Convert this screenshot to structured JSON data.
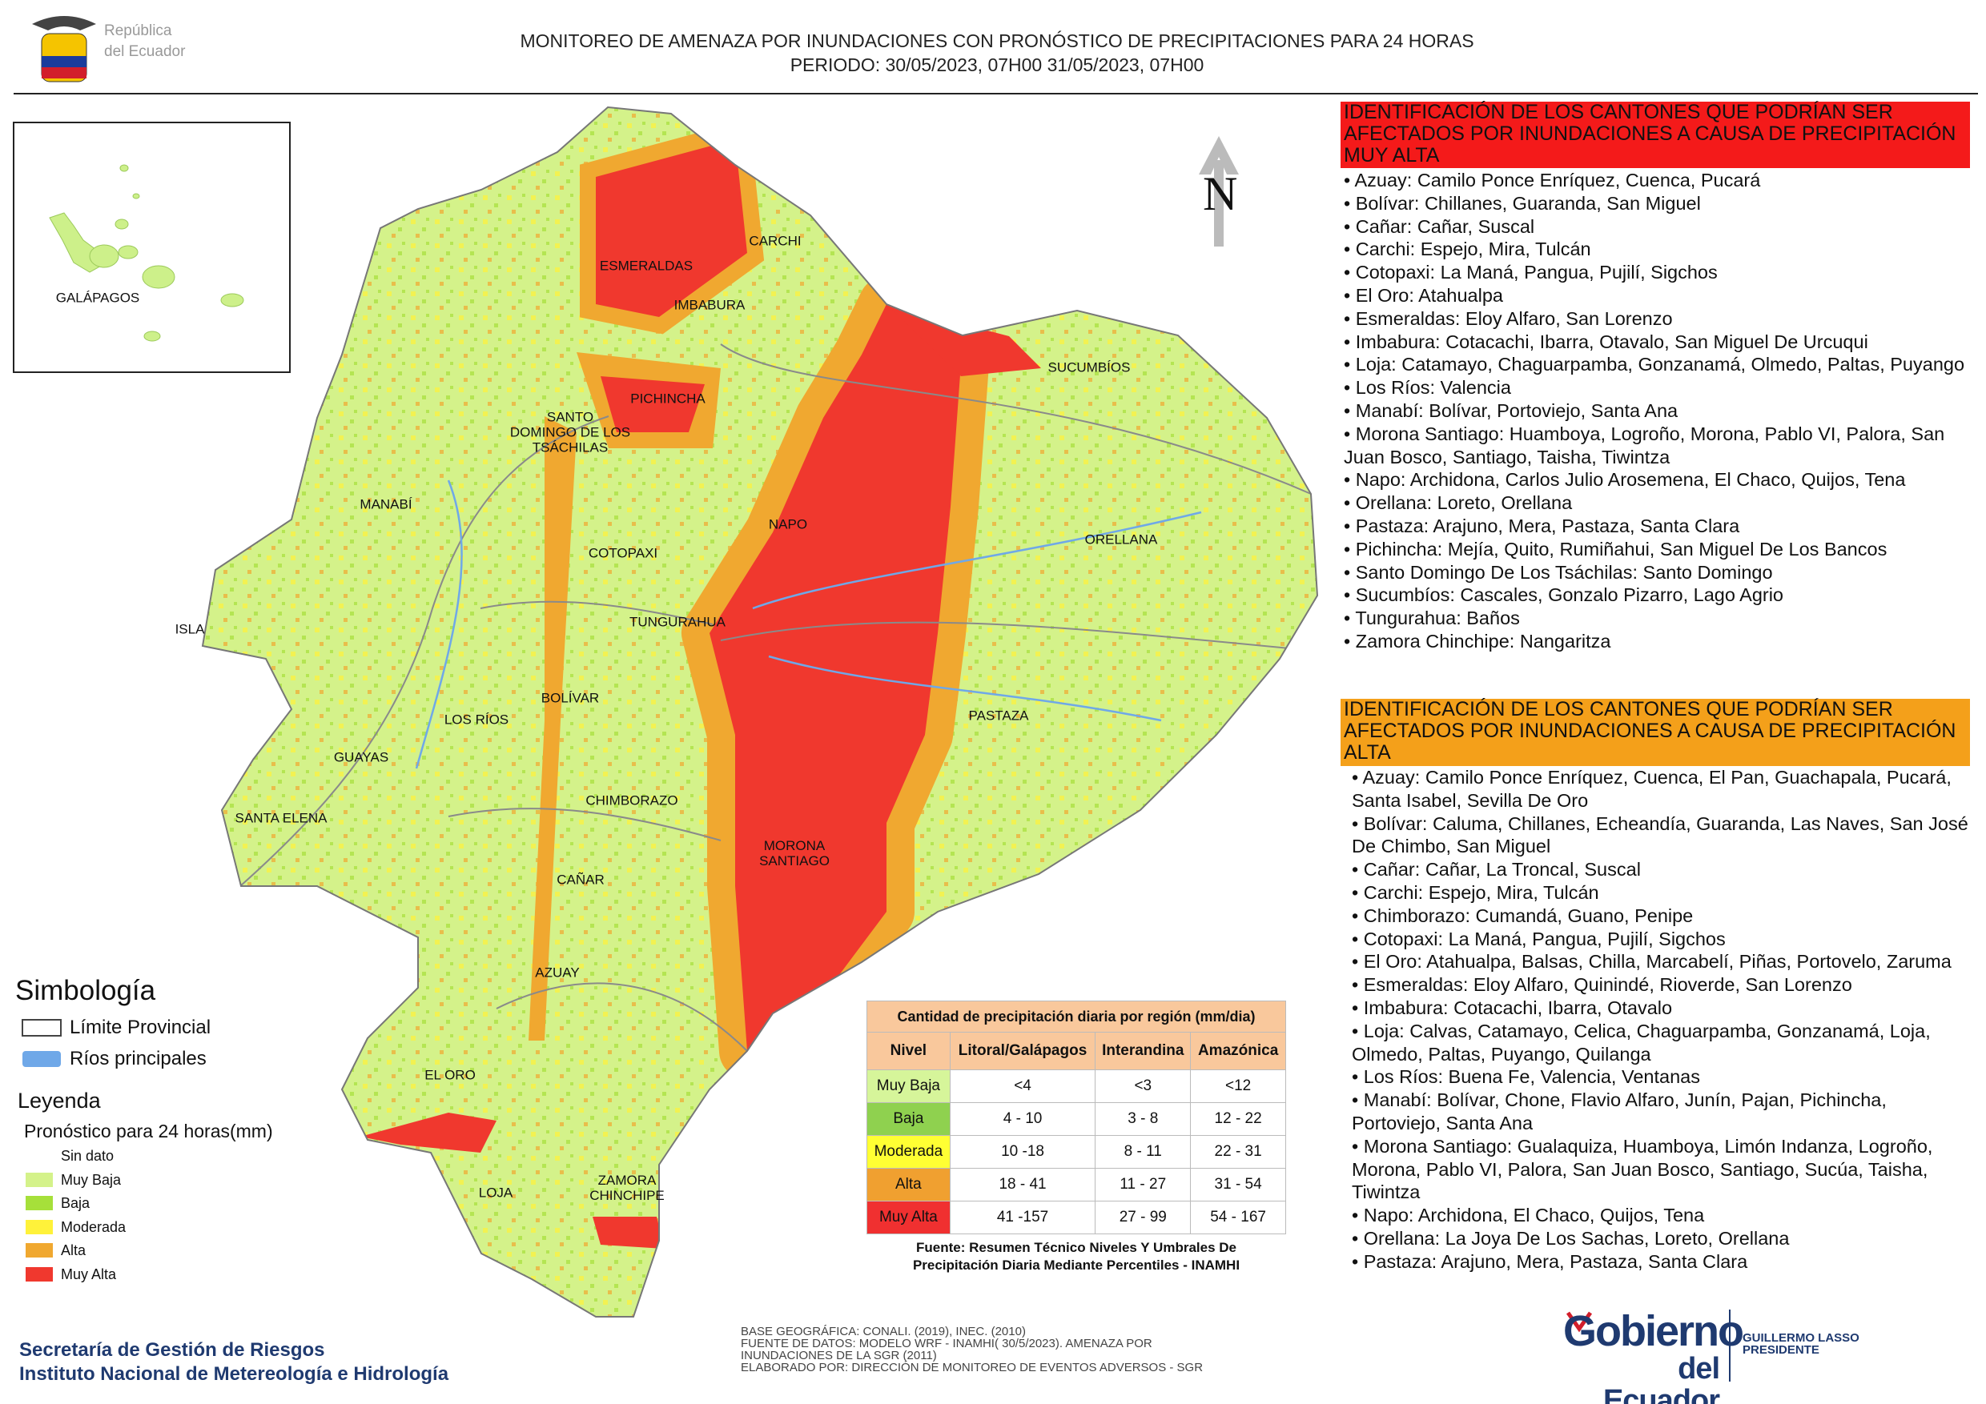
{
  "header": {
    "logo_text": [
      "República",
      "del Ecuador"
    ],
    "title": [
      "MONITOREO DE AMENAZA POR INUNDACIONES  CON PRONÓSTICO DE  PRECIPITACIONES PARA 24 HORAS",
      "PERIODO: 30/05/2023, 07H00 31/05/2023, 07H00"
    ]
  },
  "map": {
    "north": "N",
    "inset_label": "GALÁPAGOS",
    "provinces": [
      "CARCHI",
      "ESMERALDAS",
      "IMBABURA",
      "SUCUMBÍOS",
      "PICHINCHA",
      "SANTO\nDOMINGO DE LOS\nTSÁCHILAS",
      "MANABÍ",
      "NAPO",
      "ORELLANA",
      "COTOPAXI",
      "ISLA",
      "TUNGURAHUA",
      "BOLÍVAR",
      "LOS RÍOS",
      "PASTAZA",
      "GUAYAS",
      "CHIMBORAZO",
      "SANTA ELENA",
      "MORONA\nSANTIAGO",
      "CAÑAR",
      "AZUAY",
      "EL ORO",
      "LOJA",
      "ZAMORA\nCHINCHIPE"
    ]
  },
  "legend": {
    "symbology_title": "Simbología",
    "symbols": [
      "Límite Provincial",
      "Ríos principales"
    ],
    "title": "Leyenda",
    "subtitle": "Pronóstico para 24 horas(mm)",
    "levels": [
      "Sin dato",
      "Muy Baja",
      "Baja",
      "Moderada",
      "Alta",
      "Muy Alta"
    ]
  },
  "table": {
    "title": "Cantidad de precipitación diaria por región (mm/dia)",
    "headers": [
      "Nivel",
      "Litoral/Galápagos",
      "Interandina",
      "Amazónica"
    ],
    "rows": [
      [
        "Muy Baja",
        "<4",
        "<3",
        "<12"
      ],
      [
        "Baja",
        "4 - 10",
        "3 - 8",
        "12 - 22"
      ],
      [
        "Moderada",
        "10 -18",
        "8 - 11",
        "22 - 31"
      ],
      [
        "Alta",
        "18 - 41",
        "11 - 27",
        "31 - 54"
      ],
      [
        "Muy Alta",
        "41 -157",
        "27 - 99",
        "54 - 167"
      ]
    ],
    "source": [
      "Fuente: Resumen Técnico Niveles Y Umbrales De",
      "Precipitación Diaria Mediante Percentiles - INAMHI"
    ]
  },
  "panel_muy_alta": {
    "title": "IDENTIFICACIÓN DE LOS CANTONES QUE PODRÍAN SER AFECTADOS POR INUNDACIONES  A CAUSA DE PRECIPITACIÓN MUY ALTA",
    "items": [
      "• Azuay: Camilo Ponce Enríquez, Cuenca, Pucará",
      "• Bolívar: Chillanes, Guaranda, San Miguel",
      "• Cañar: Cañar, Suscal",
      "• Carchi: Espejo, Mira, Tulcán",
      "• Cotopaxi: La Maná, Pangua, Pujilí, Sigchos",
      "• El Oro: Atahualpa",
      "• Esmeraldas: Eloy Alfaro, San Lorenzo",
      "• Imbabura: Cotacachi, Ibarra, Otavalo, San Miguel De Urcuqui",
      "• Loja: Catamayo, Chaguarpamba, Gonzanamá, Olmedo, Paltas, Puyango",
      "• Los Ríos: Valencia",
      "• Manabí: Bolívar, Portoviejo, Santa Ana",
      "• Morona Santiago: Huamboya, Logroño, Morona, Pablo VI, Palora, San Juan Bosco, Santiago, Taisha, Tiwintza",
      "• Napo: Archidona, Carlos Julio Arosemena, El Chaco, Quijos, Tena",
      "• Orellana: Loreto, Orellana",
      "• Pastaza: Arajuno, Mera, Pastaza, Santa Clara",
      "• Pichincha: Mejía, Quito, Rumiñahui, San Miguel De Los Bancos",
      "• Santo Domingo De Los Tsáchilas: Santo Domingo",
      "• Sucumbíos: Cascales, Gonzalo Pizarro, Lago Agrio",
      "• Tungurahua: Baños",
      "• Zamora Chinchipe: Nangaritza"
    ]
  },
  "panel_alta": {
    "title": "IDENTIFICACIÓN DE LOS CANTONES QUE  PODRÍAN SER AFECTADOS POR INUNDACIONES  A CAUSA DE PRECIPITACIÓN ALTA",
    "items": [
      "• Azuay: Camilo Ponce Enríquez, Cuenca, El Pan, Guachapala, Pucará, Santa Isabel, Sevilla De Oro",
      "• Bolívar: Caluma, Chillanes, Echeandía, Guaranda, Las Naves, San José De Chimbo, San Miguel",
      "• Cañar: Cañar, La Troncal, Suscal",
      "• Carchi: Espejo, Mira, Tulcán",
      "• Chimborazo: Cumandá, Guano, Penipe",
      "• Cotopaxi: La Maná, Pangua, Pujilí, Sigchos",
      "• El Oro: Atahualpa, Balsas, Chilla, Marcabelí, Piñas, Portovelo, Zaruma",
      "• Esmeraldas: Eloy Alfaro, Quinindé, Rioverde, San Lorenzo",
      "• Imbabura: Cotacachi, Ibarra, Otavalo",
      "• Loja: Calvas, Catamayo, Celica, Chaguarpamba, Gonzanamá, Loja, Olmedo, Paltas, Puyango, Quilanga",
      "• Los Ríos: Buena Fe, Valencia, Ventanas",
      "• Manabí: Bolívar, Chone, Flavio Alfaro, Junín, Pajan, Pichincha, Portoviejo, Santa Ana",
      "• Morona Santiago: Gualaquiza, Huamboya, Limón Indanza, Logroño, Morona, Pablo VI, Palora, San Juan Bosco, Santiago, Sucúa, Taisha, Tiwintza",
      "• Napo: Archidona, El Chaco, Quijos, Tena",
      "• Orellana: La Joya De Los Sachas, Loreto, Orellana",
      "• Pastaza: Arajuno, Mera, Pastaza, Santa Clara"
    ]
  },
  "footer": {
    "institutions": [
      "Secretaría de Gestión de Riesgos",
      "Instituto Nacional de Metereología e Hidrología"
    ],
    "notes": [
      "BASE GEOGRÁFICA: CONALI. (2019), INEC. (2010)",
      "FUENTE DE DATOS: MODELO WRF - INAMHI( 30/5/2023).  AMENAZA POR",
      "INUNDACIONES DE LA SGR  (2011)",
      "ELABORADO POR: DIRECCIÓN DE MONITOREO DE EVENTOS ADVERSOS - SGR"
    ],
    "gov_logo": [
      "Gobierno",
      "del Ecuador"
    ],
    "president": [
      "GUILLERMO LASSO",
      "PRESIDENTE"
    ]
  }
}
